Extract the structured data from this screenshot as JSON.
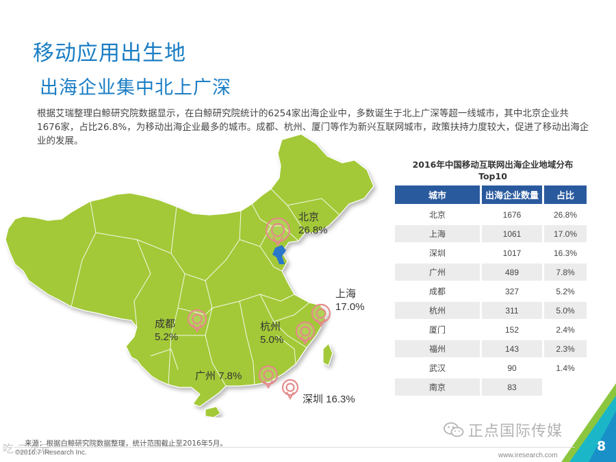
{
  "title": "移动应用出生地",
  "subtitle": "出海企业集中北上广深",
  "intro": "根据艾瑞整理白鲸研究院数据显示，在白鲸研究院统计的6254家出海企业中，多数诞生于北上广深等超一线城市，其中北京企业共1676家，占比26.8%，为移动出海企业最多的城市。成都、杭州、厦门等作为新兴互联网城市，政策扶持力度较大，促进了移动出海企业的发展。",
  "map": {
    "fill_color": "#a3c937",
    "marker_color": "#e58a8a",
    "labels": [
      {
        "city": "北京",
        "pct": "26.8%"
      },
      {
        "city": "上海",
        "pct": "17.0%"
      },
      {
        "city": "成都",
        "pct": "5.2%"
      },
      {
        "city": "杭州",
        "pct": "5.0%"
      },
      {
        "city": "广州 7.8%"
      },
      {
        "city": "深圳 16.3%"
      }
    ]
  },
  "table": {
    "title_line1": "2016年中国移动互联网出海企业地域分布",
    "title_line2": "Top10",
    "headers": [
      "城市",
      "出海企业数量",
      "占比"
    ],
    "rows": [
      {
        "city": "北京",
        "count": "1676",
        "share": "26.8%"
      },
      {
        "city": "上海",
        "count": "1061",
        "share": "17.0%"
      },
      {
        "city": "深圳",
        "count": "1017",
        "share": "16.3%"
      },
      {
        "city": "广州",
        "count": "489",
        "share": "7.8%"
      },
      {
        "city": "成都",
        "count": "327",
        "share": "5.2%"
      },
      {
        "city": "杭州",
        "count": "311",
        "share": "5.0%"
      },
      {
        "city": "厦门",
        "count": "152",
        "share": "2.4%"
      },
      {
        "city": "福州",
        "count": "143",
        "share": "2.3%"
      },
      {
        "city": "武汉",
        "count": "90",
        "share": "1.4%"
      },
      {
        "city": "南京",
        "count": "83",
        "share": ""
      }
    ]
  },
  "footer": {
    "source": "来源：根据白鲸研究院数据整理，统计范围截止至2016年5月。",
    "copyright": "©2016.7 iResearch Inc.",
    "website": "www.iresearch.com",
    "page_number": "8",
    "watermark": "正点国际传媒",
    "watermark_left": "吃 二次元"
  },
  "colors": {
    "title": "#1a7dc4",
    "table_header": "#2a5a9e",
    "accent_teal": "#1bb7c8",
    "accent_green": "#8cc63f"
  }
}
